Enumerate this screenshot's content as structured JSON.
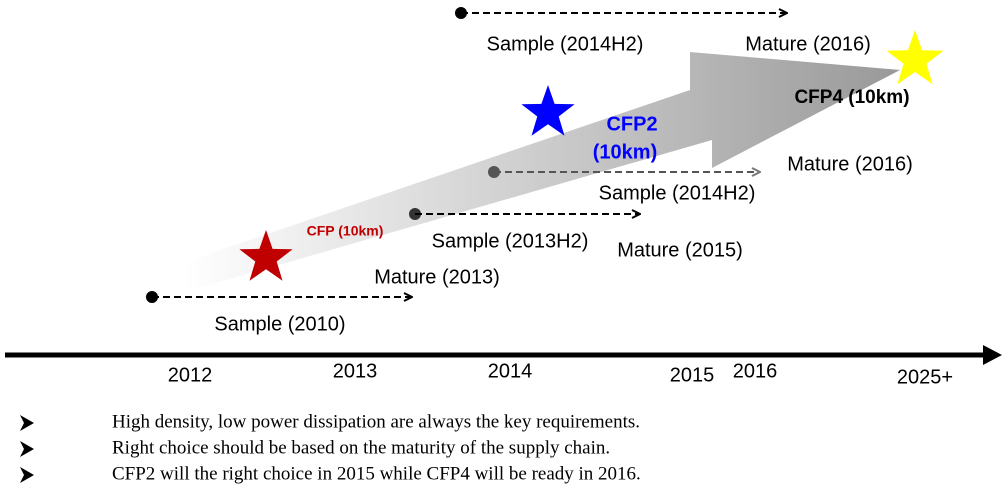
{
  "timeline": {
    "ticks": [
      "2012",
      "2013",
      "2014",
      "2015",
      "2016",
      "2025+"
    ]
  },
  "modules": [
    {
      "name": "CFP (10km)"
    },
    {
      "name_line1": "CFP2",
      "name_line2": "(10km)"
    },
    {
      "name": "CFP4 (10km)"
    }
  ],
  "tracks": [
    {
      "sample": "Sample (2010)",
      "mature": "Mature (2013)"
    },
    {
      "sample": "Sample (2013H2)",
      "mature": "Mature (2015)"
    },
    {
      "sample": "Sample (2014H2)",
      "mature": "Mature (2016)"
    },
    {
      "sample": "Sample (2014H2)",
      "mature": "Mature (2016)"
    }
  ],
  "bullets": [
    "High density, low power dissipation are always the key requirements.",
    "Right choice should be based on the maturity of the supply chain.",
    "CFP2 will the right choice in 2015 while CFP4 will be ready in 2016."
  ]
}
